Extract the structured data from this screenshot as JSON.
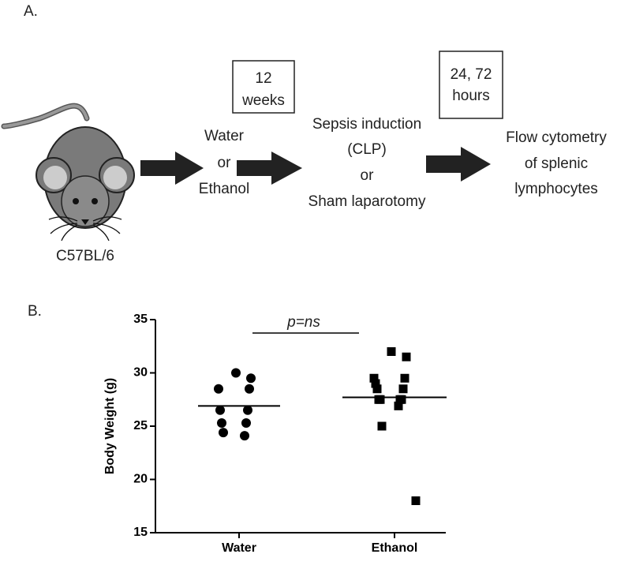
{
  "panel_a": {
    "label": "A.",
    "strain": "C57BL/6",
    "treatment": [
      "Water",
      "or",
      "Ethanol"
    ],
    "duration": [
      "12",
      "weeks"
    ],
    "procedure": [
      "Sepsis induction",
      "(CLP)",
      "or",
      "Sham laparotomy"
    ],
    "timepoints": [
      "24, 72",
      "hours"
    ],
    "readout": [
      "Flow cytometry",
      "of splenic",
      "lymphocytes"
    ]
  },
  "chart_data": {
    "type": "dot",
    "panel_label": "B.",
    "y_label": "Body Weight (g)",
    "categories": [
      "Water",
      "Ethanol"
    ],
    "values": [
      [
        30.0,
        29.5,
        28.5,
        28.5,
        26.5,
        26.5,
        25.3,
        25.3,
        24.4,
        24.1
      ],
      [
        32.0,
        31.5,
        29.5,
        29.5,
        29.0,
        28.5,
        28.5,
        27.5,
        27.5,
        27.5,
        27.5,
        26.9,
        25.0,
        18.0
      ]
    ],
    "means": [
      26.9,
      27.7
    ],
    "markers": [
      "circle",
      "square"
    ],
    "color": "#000000",
    "annotation": "p=ns",
    "ylim": [
      15,
      35
    ],
    "yticks": [
      15,
      20,
      25,
      30,
      35
    ]
  }
}
